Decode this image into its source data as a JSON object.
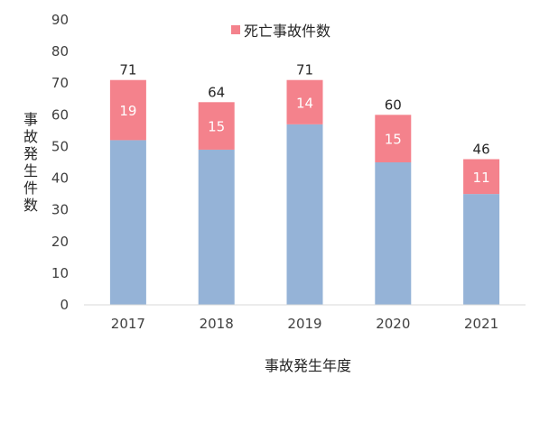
{
  "chart_data": {
    "type": "bar",
    "stacked": true,
    "categories": [
      "2017",
      "2018",
      "2019",
      "2020",
      "2021"
    ],
    "totals": [
      71,
      64,
      71,
      60,
      46
    ],
    "series": [
      {
        "values": [
          52,
          49,
          57,
          45,
          35
        ],
        "color": "#95B3D7"
      },
      {
        "name": "死亡事故件数",
        "values": [
          19,
          15,
          14,
          15,
          11
        ],
        "color": "#F4828C"
      }
    ],
    "xlabel": "事故発生年度",
    "ylabel": "事故発生件数",
    "ylim": [
      0,
      90
    ],
    "yticks": [
      0,
      10,
      20,
      30,
      40,
      50,
      60,
      70,
      80,
      90
    ],
    "grid": false,
    "legend": "top-center"
  }
}
